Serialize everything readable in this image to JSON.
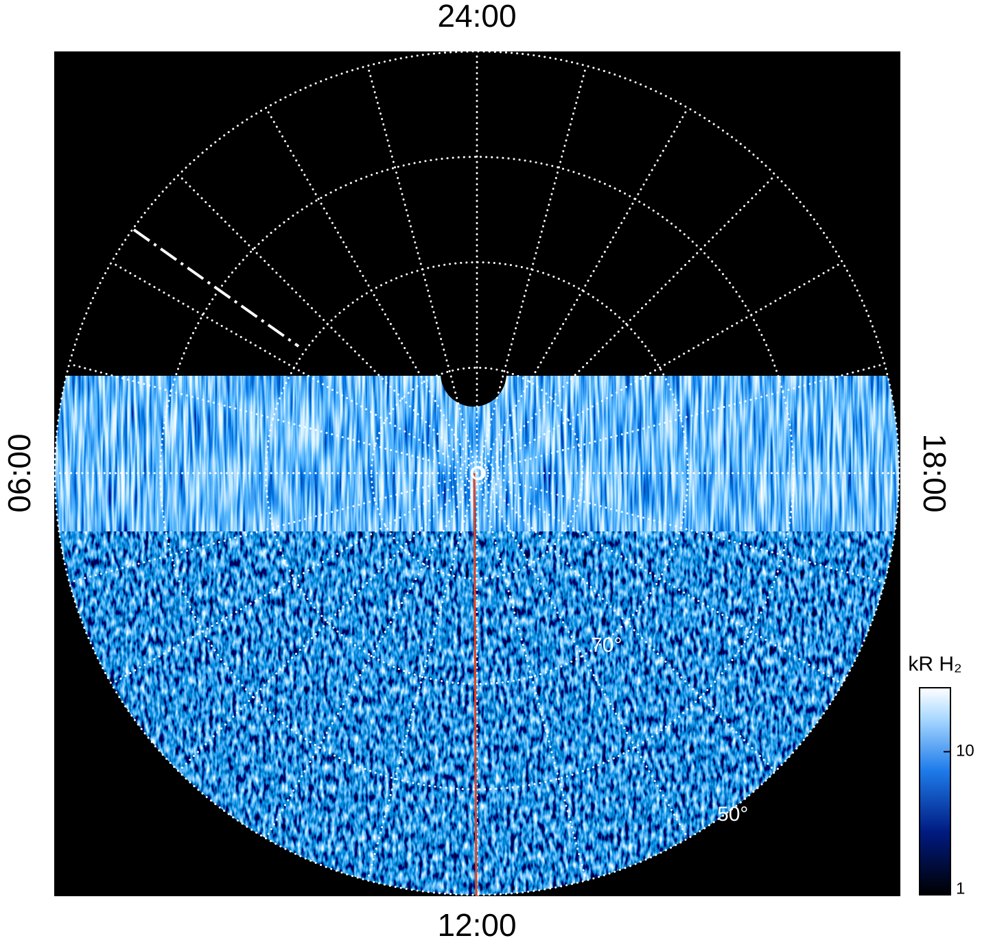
{
  "chart_data": {
    "type": "polar",
    "hour_labels": [
      {
        "value": 24,
        "label": "24:00"
      },
      {
        "value": 6,
        "label": "06:00"
      },
      {
        "value": 12,
        "label": "12:00"
      },
      {
        "value": 18,
        "label": "18:00"
      }
    ],
    "meridian_step_hours": 1,
    "rlim": [
      90,
      50
    ],
    "rings": [
      80,
      70,
      60,
      50
    ],
    "ring_labels": [
      {
        "value": 70,
        "label": "70°"
      },
      {
        "value": 50,
        "label": "50°"
      }
    ],
    "colorbar": {
      "label": "kR H₂",
      "lim": [
        1,
        28
      ],
      "ticks": [
        1,
        10
      ],
      "log": true
    }
  }
}
